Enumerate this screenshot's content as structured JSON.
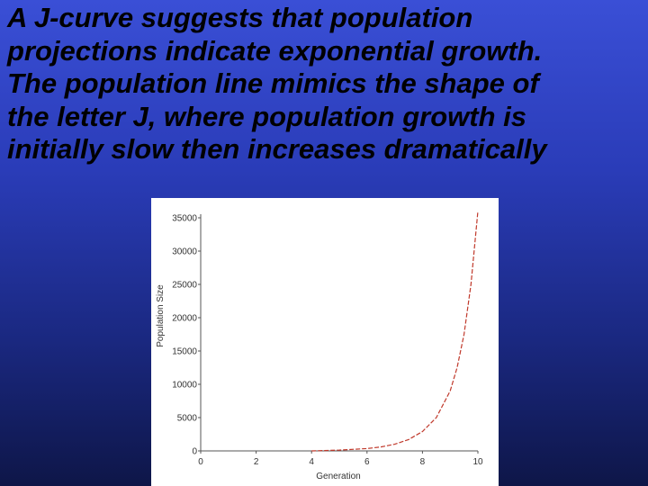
{
  "slide": {
    "lines": [
      "A J-curve suggests that population",
      "projections indicate exponential growth.",
      "The population line mimics the shape of",
      "the letter J, where population growth is",
      "initially slow then increases dramatically"
    ]
  },
  "colors": {
    "background_top": "#3a4fd6",
    "background_bottom": "#0e1648",
    "curve": "#c0392b",
    "text": "#000000"
  },
  "chart_data": {
    "type": "line",
    "title": "",
    "xlabel": "Generation",
    "ylabel": "Population Size",
    "xlim": [
      0,
      10
    ],
    "ylim": [
      0,
      35000
    ],
    "x_ticks": [
      0,
      2,
      4,
      6,
      8,
      10
    ],
    "y_ticks": [
      0,
      5000,
      10000,
      15000,
      20000,
      25000,
      30000,
      35000
    ],
    "grid": false,
    "series": [
      {
        "line_style": "dashed",
        "color": "#c0392b",
        "x": [
          4.0,
          5.0,
          6.0,
          6.5,
          7.0,
          7.5,
          8.0,
          8.5,
          9.0,
          9.25,
          9.5,
          9.75,
          10.0
        ],
        "y": [
          0,
          120,
          350,
          600,
          1000,
          1700,
          2900,
          5000,
          9000,
          12500,
          17500,
          25000,
          36000
        ]
      }
    ]
  }
}
